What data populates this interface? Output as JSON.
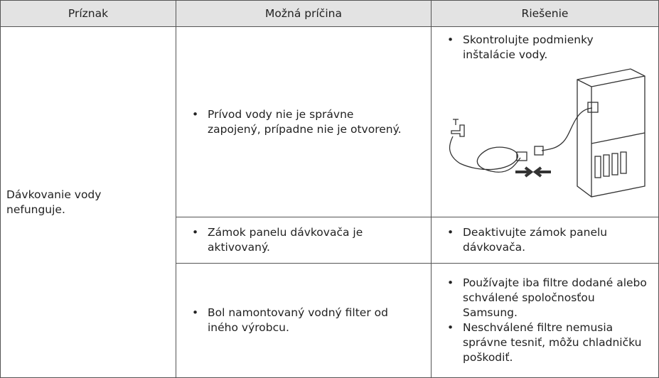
{
  "table": {
    "header": [
      "Príznak",
      "Možná príčina",
      "Riešenie"
    ],
    "symptom": "Dávkovanie vody nefunguje.",
    "rows": [
      {
        "cause": "Prívod vody nie je správne zapojený, prípadne nie je otvorený.",
        "solutions": [
          "Skontrolujte podmienky inštalácie vody."
        ]
      },
      {
        "cause": "Zámok panelu dávkovača je aktivovaný.",
        "solutions": [
          "Deaktivujte zámok panelu dávkovača."
        ]
      },
      {
        "cause": "Bol namontovaný vodný filter od iného výrobcu.",
        "solutions": [
          "Používajte iba filtre dodané alebo schválené spoločnosťou Samsung.",
          "Neschválené filtre nemusia správne tesniť, môžu chladničku poškodiť."
        ]
      }
    ]
  }
}
